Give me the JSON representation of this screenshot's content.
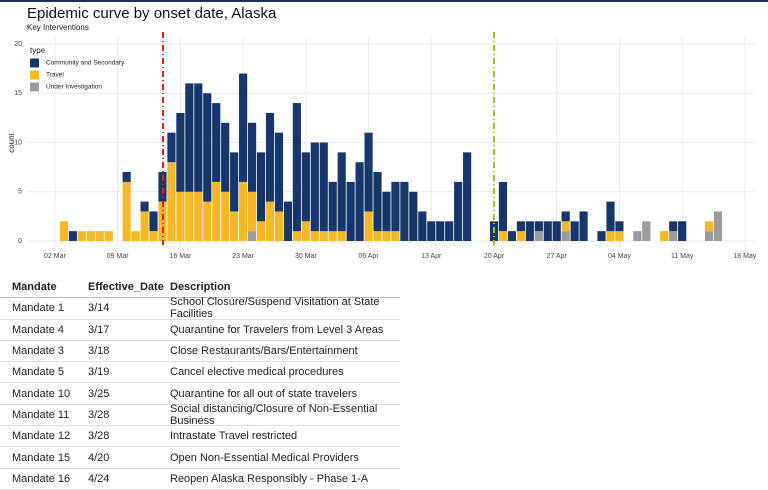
{
  "chart_data": {
    "type": "bar",
    "stacked": true,
    "title": "Epidemic curve by onset date, Alaska",
    "subtitle": "Key Interventions",
    "ylabel": "count",
    "legend_title": "type",
    "legend_position": "top-left",
    "grid": true,
    "categories": [
      null,
      "02 Mar",
      null,
      null,
      null,
      null,
      null,
      null,
      "09 Mar",
      null,
      null,
      null,
      null,
      null,
      null,
      "16 Mar",
      null,
      null,
      null,
      null,
      null,
      null,
      "23 Mar",
      null,
      null,
      null,
      null,
      null,
      null,
      "30 Mar",
      null,
      null,
      null,
      null,
      null,
      null,
      "06 Apr",
      null,
      null,
      null,
      null,
      null,
      null,
      "13 Apr",
      null,
      null,
      null,
      null,
      null,
      null,
      "20 Apr",
      null,
      null,
      null,
      null,
      null,
      null,
      "27 Apr",
      null,
      null,
      null,
      null,
      null,
      null,
      "04 May",
      null,
      null,
      null,
      null,
      null,
      null,
      "11 May",
      null,
      null,
      null,
      null,
      null,
      null,
      "18 May"
    ],
    "series": [
      {
        "name": "Community and Secondary",
        "color": "#17366b",
        "values": [
          0,
          0,
          0,
          1,
          0,
          0,
          0,
          0,
          0,
          1,
          0,
          1,
          2,
          3,
          3,
          8,
          11,
          11,
          11,
          8,
          7,
          6,
          11,
          7,
          7,
          9,
          8,
          4,
          13,
          7,
          9,
          9,
          5,
          8,
          6,
          8,
          8,
          6,
          4,
          5,
          6,
          5,
          3,
          2,
          2,
          2,
          6,
          9,
          0,
          0,
          2,
          5,
          1,
          1,
          2,
          1,
          2,
          2,
          1,
          2,
          3,
          0,
          1,
          3,
          1,
          0,
          0,
          0,
          0,
          0,
          1,
          2,
          0,
          0,
          0,
          0,
          0,
          0,
          0
        ]
      },
      {
        "name": "Travel",
        "color": "#f6b829",
        "values": [
          0,
          0,
          2,
          0,
          1,
          1,
          1,
          1,
          0,
          6,
          1,
          3,
          1,
          4,
          8,
          5,
          5,
          5,
          4,
          6,
          5,
          3,
          6,
          4,
          2,
          4,
          3,
          0,
          1,
          2,
          1,
          1,
          1,
          1,
          0,
          0,
          3,
          1,
          1,
          1,
          0,
          0,
          0,
          0,
          0,
          0,
          0,
          0,
          0,
          0,
          0,
          1,
          0,
          1,
          0,
          0,
          0,
          0,
          1,
          0,
          0,
          0,
          0,
          1,
          1,
          0,
          0,
          0,
          0,
          1,
          0,
          0,
          0,
          0,
          1,
          0,
          0,
          0,
          0
        ]
      },
      {
        "name": "Under Investigation",
        "color": "#9b9b9b",
        "values": [
          0,
          0,
          0,
          0,
          0,
          0,
          0,
          0,
          0,
          0,
          0,
          0,
          0,
          0,
          0,
          0,
          0,
          0,
          0,
          0,
          0,
          0,
          0,
          1,
          0,
          0,
          0,
          0,
          0,
          0,
          0,
          0,
          0,
          0,
          0,
          0,
          0,
          0,
          0,
          0,
          0,
          0,
          0,
          0,
          0,
          0,
          0,
          0,
          0,
          0,
          0,
          0,
          0,
          0,
          0,
          1,
          0,
          0,
          1,
          0,
          0,
          0,
          0,
          0,
          0,
          0,
          1,
          2,
          0,
          0,
          1,
          0,
          0,
          0,
          1,
          3,
          0,
          0,
          0
        ]
      }
    ],
    "ylim": [
      0,
      20
    ],
    "yticks": [
      0,
      5,
      10,
      15,
      20
    ]
  },
  "table": {
    "header": [
      "Mandate",
      "Effective_Date",
      "Description"
    ],
    "rows": [
      [
        "Mandate 1",
        "3/14",
        "School Closure/Suspend Visitation at State Facilities"
      ],
      [
        "Mandate 4",
        "3/17",
        "Quarantine for Travelers from Level 3 Areas"
      ],
      [
        "Mandate 3",
        "3/18",
        "Close Restaurants/Bars/Entertainment"
      ],
      [
        "Mandate 5",
        "3/19",
        "Cancel elective medical procedures"
      ],
      [
        "Mandate 10",
        "3/25",
        "Quarantine for all out of state travelers"
      ],
      [
        "Mandate 11",
        "3/28",
        "Social distancing/Closure of Non-Essential Business"
      ],
      [
        "Mandate 12",
        "3/28",
        "Intrastate Travel restricted"
      ],
      [
        "Mandate 15",
        "4/20",
        "Open Non-Essential Medical Providers"
      ],
      [
        "Mandate 16",
        "4/24",
        "Reopen Alaska Responsibly - Phase 1-A"
      ]
    ]
  }
}
